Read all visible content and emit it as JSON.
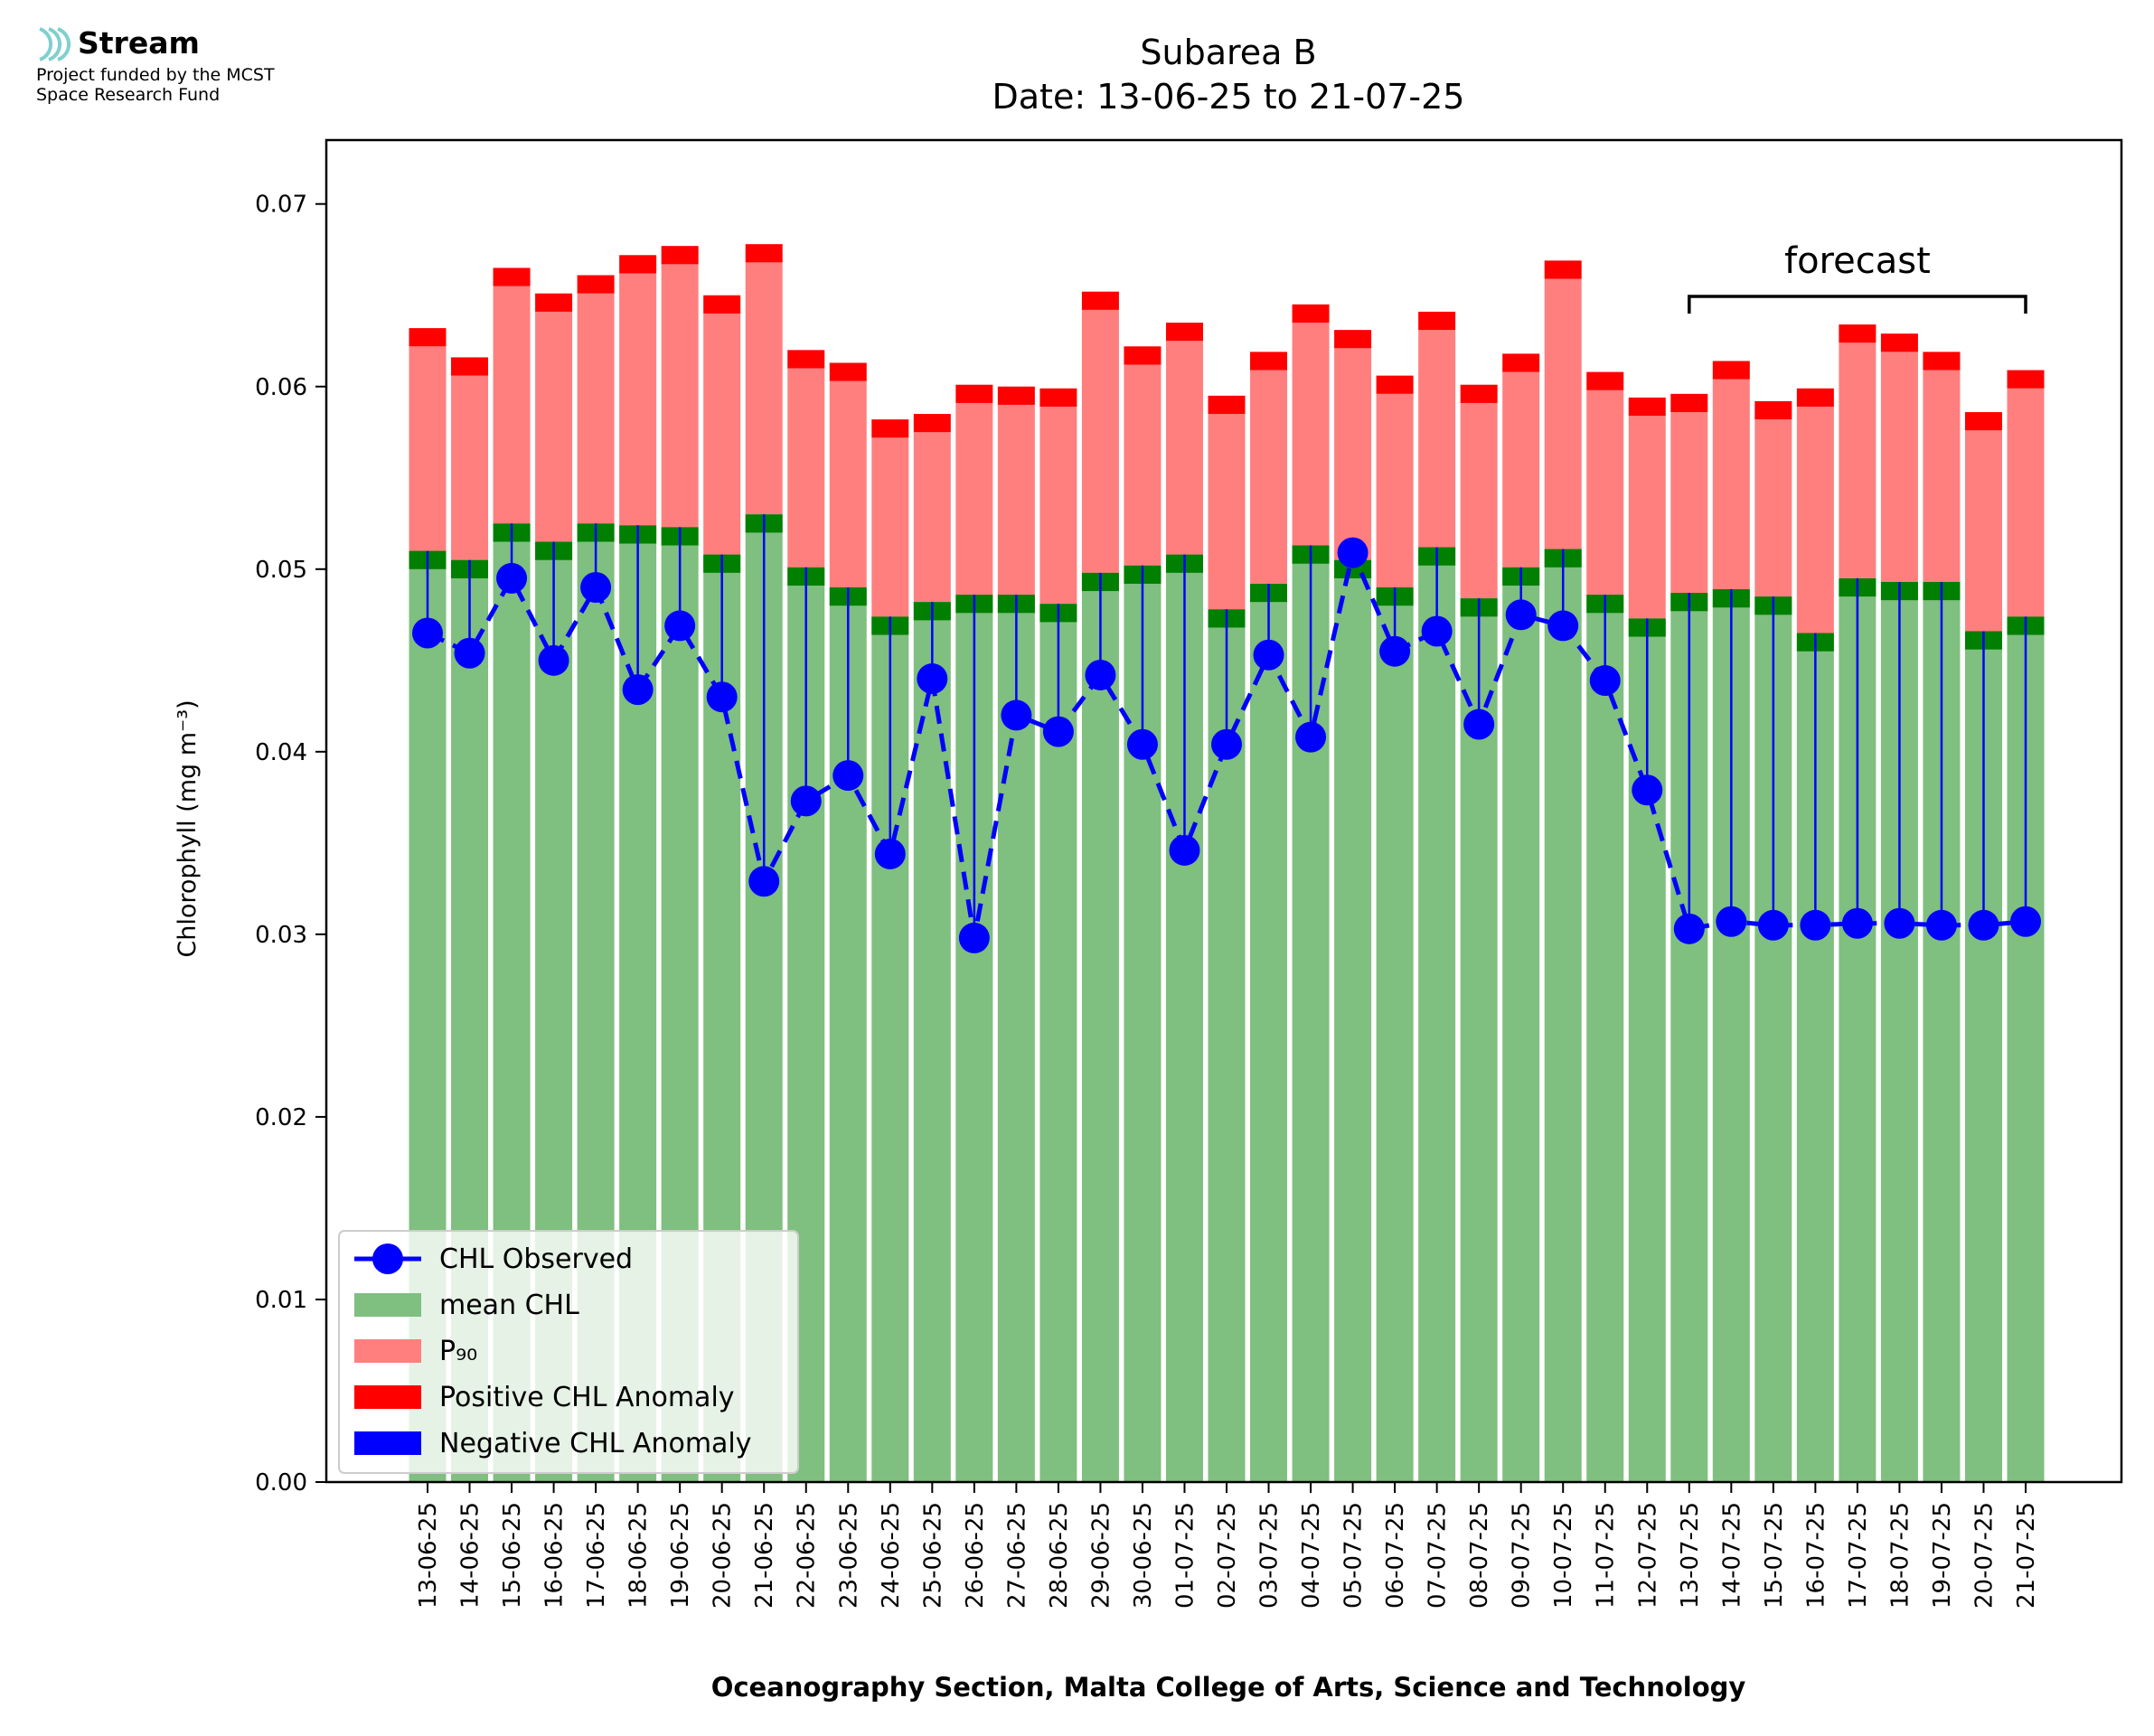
{
  "logo": {
    "name": "Stream",
    "line1": "Project funded by the MCST",
    "line2": "Space Research Fund"
  },
  "chart_data": {
    "type": "bar",
    "title": "Subarea B",
    "subtitle": "Date: 13-06-25 to 21-07-25",
    "ylabel": "Chlorophyll (mg m⁻³)",
    "xlabel": "Oceanography Section, Malta College of Arts, Science and Technology",
    "ylim": [
      0,
      0.0735
    ],
    "yticks": [
      "0.00",
      "0.01",
      "0.02",
      "0.03",
      "0.04",
      "0.05",
      "0.06",
      "0.07"
    ],
    "grid": false,
    "legend_position": "bottom-left",
    "categories": [
      "13-06-25",
      "14-06-25",
      "15-06-25",
      "16-06-25",
      "17-06-25",
      "18-06-25",
      "19-06-25",
      "20-06-25",
      "21-06-25",
      "22-06-25",
      "23-06-25",
      "24-06-25",
      "25-06-25",
      "26-06-25",
      "27-06-25",
      "28-06-25",
      "29-06-25",
      "30-06-25",
      "01-07-25",
      "02-07-25",
      "03-07-25",
      "04-07-25",
      "05-07-25",
      "06-07-25",
      "07-07-25",
      "08-07-25",
      "09-07-25",
      "10-07-25",
      "11-07-25",
      "12-07-25",
      "13-07-25",
      "14-07-25",
      "15-07-25",
      "16-07-25",
      "17-07-25",
      "18-07-25",
      "19-07-25",
      "20-07-25",
      "21-07-25"
    ],
    "series": [
      {
        "name": "mean CHL",
        "color": "#7fbf7f",
        "values": [
          0.051,
          0.0505,
          0.0525,
          0.0515,
          0.0525,
          0.0524,
          0.0523,
          0.0508,
          0.053,
          0.0501,
          0.049,
          0.0474,
          0.0482,
          0.0486,
          0.0486,
          0.0481,
          0.0498,
          0.0502,
          0.0508,
          0.0478,
          0.0492,
          0.0513,
          0.0505,
          0.049,
          0.0512,
          0.0484,
          0.0501,
          0.0511,
          0.0486,
          0.0473,
          0.0487,
          0.0489,
          0.0485,
          0.0465,
          0.0495,
          0.0493,
          0.0493,
          0.0466,
          0.0474
        ]
      },
      {
        "name": "P₉₀",
        "color": "#ff7f7f",
        "values": [
          0.0622,
          0.0606,
          0.0655,
          0.0641,
          0.0651,
          0.0662,
          0.0667,
          0.064,
          0.0668,
          0.061,
          0.0603,
          0.0572,
          0.0575,
          0.0591,
          0.059,
          0.0589,
          0.0642,
          0.0612,
          0.0625,
          0.0585,
          0.0609,
          0.0635,
          0.0621,
          0.0596,
          0.0631,
          0.0591,
          0.0608,
          0.0659,
          0.0598,
          0.0584,
          0.0586,
          0.0604,
          0.0582,
          0.0589,
          0.0624,
          0.0619,
          0.0609,
          0.0576,
          0.0599
        ]
      },
      {
        "name": "CHL Observed",
        "color": "#0000ff",
        "values": [
          0.0465,
          0.0454,
          0.0495,
          0.045,
          0.049,
          0.0434,
          0.0469,
          0.043,
          0.0329,
          0.0373,
          0.0387,
          0.0344,
          0.044,
          0.0298,
          0.042,
          0.0411,
          0.0442,
          0.0404,
          0.0346,
          0.0404,
          0.0453,
          0.0408,
          0.0509,
          0.0455,
          0.0466,
          0.0415,
          0.0475,
          0.0469,
          0.0439,
          0.0379,
          0.0303,
          0.0307,
          0.0305,
          0.0305,
          0.0306,
          0.0306,
          0.0305,
          0.0305,
          0.0307
        ]
      }
    ],
    "anomaly_band": 0.001,
    "legend": [
      {
        "label": "CHL Observed",
        "kind": "line",
        "color": "#0000ff"
      },
      {
        "label": "mean CHL",
        "kind": "patch",
        "color": "#7fbf7f"
      },
      {
        "label": "P₉₀",
        "kind": "patch",
        "color": "#ff7f7f"
      },
      {
        "label": "Positive CHL Anomaly",
        "kind": "patch",
        "color": "#ff0000"
      },
      {
        "label": "Negative CHL Anomaly",
        "kind": "patch",
        "color": "#0000ff"
      }
    ],
    "annotation": {
      "text": "forecast",
      "from": "13-07-25",
      "to": "21-07-25"
    },
    "colors": {
      "green_band": "#007f00",
      "red_band": "#ff0000",
      "line": "#0000ff"
    }
  }
}
